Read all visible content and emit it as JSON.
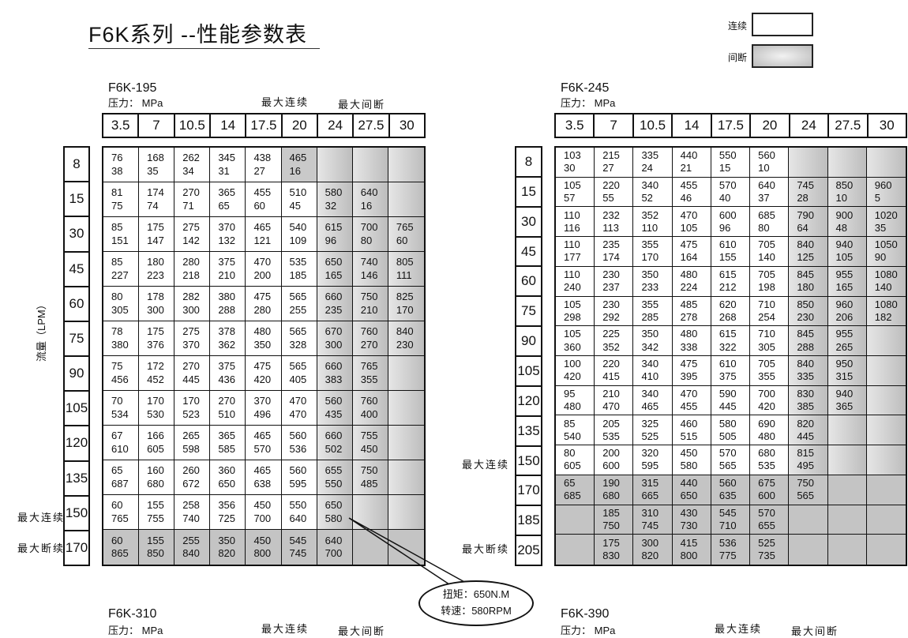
{
  "title": "F6K系列 --性能参数表",
  "legend": {
    "continuous": "连续",
    "intermittent": "间断",
    "continuous_color": "#ffffff",
    "intermittent_color": "#c4c4c4"
  },
  "flow_axis_label": "流量（LPM）",
  "callout": {
    "torque": "扭矩：650N.M",
    "speed": "转速：580RPM"
  },
  "tables": [
    {
      "model": "F6K-195",
      "pressure_label": "压力：  MPa",
      "max_continuous_label": "最大连续",
      "max_intermittent_label": "最大间断",
      "row_side_labels": {
        "150": "最大连续",
        "170": "最大断续"
      },
      "pressures": [
        "3.5",
        "7",
        "10.5",
        "14",
        "17.5",
        "20",
        "24",
        "27.5",
        "30"
      ],
      "flows": [
        "8",
        "15",
        "30",
        "45",
        "60",
        "75",
        "90",
        "105",
        "120",
        "135",
        "150",
        "170"
      ],
      "shade_from": [
        5,
        6,
        6,
        6,
        6,
        6,
        6,
        6,
        6,
        6,
        6,
        0
      ],
      "cells": [
        [
          [
            "76",
            "38"
          ],
          [
            "168",
            "35"
          ],
          [
            "262",
            "34"
          ],
          [
            "345",
            "31"
          ],
          [
            "438",
            "27"
          ],
          [
            "465",
            "16"
          ],
          null,
          null,
          null
        ],
        [
          [
            "81",
            "75"
          ],
          [
            "174",
            "74"
          ],
          [
            "270",
            "71"
          ],
          [
            "365",
            "65"
          ],
          [
            "455",
            "60"
          ],
          [
            "510",
            "45"
          ],
          [
            "580",
            "32"
          ],
          [
            "640",
            "16"
          ],
          null
        ],
        [
          [
            "85",
            "151"
          ],
          [
            "175",
            "147"
          ],
          [
            "275",
            "142"
          ],
          [
            "370",
            "132"
          ],
          [
            "465",
            "121"
          ],
          [
            "540",
            "109"
          ],
          [
            "615",
            "96"
          ],
          [
            "700",
            "80"
          ],
          [
            "765",
            "60"
          ]
        ],
        [
          [
            "85",
            "227"
          ],
          [
            "180",
            "223"
          ],
          [
            "280",
            "218"
          ],
          [
            "375",
            "210"
          ],
          [
            "470",
            "200"
          ],
          [
            "535",
            "185"
          ],
          [
            "650",
            "165"
          ],
          [
            "740",
            "146"
          ],
          [
            "805",
            "111"
          ]
        ],
        [
          [
            "80",
            "305"
          ],
          [
            "178",
            "300"
          ],
          [
            "282",
            "300"
          ],
          [
            "380",
            "288"
          ],
          [
            "475",
            "280"
          ],
          [
            "565",
            "255"
          ],
          [
            "660",
            "235"
          ],
          [
            "750",
            "210"
          ],
          [
            "825",
            "170"
          ]
        ],
        [
          [
            "78",
            "380"
          ],
          [
            "175",
            "376"
          ],
          [
            "275",
            "370"
          ],
          [
            "378",
            "362"
          ],
          [
            "480",
            "350"
          ],
          [
            "565",
            "328"
          ],
          [
            "670",
            "300"
          ],
          [
            "760",
            "270"
          ],
          [
            "840",
            "230"
          ]
        ],
        [
          [
            "75",
            "456"
          ],
          [
            "172",
            "452"
          ],
          [
            "270",
            "445"
          ],
          [
            "375",
            "436"
          ],
          [
            "475",
            "420"
          ],
          [
            "565",
            "405"
          ],
          [
            "660",
            "383"
          ],
          [
            "765",
            "355"
          ],
          null
        ],
        [
          [
            "70",
            "534"
          ],
          [
            "170",
            "530"
          ],
          [
            "170",
            "523"
          ],
          [
            "270",
            "510"
          ],
          [
            "370",
            "496"
          ],
          [
            "470",
            "470"
          ],
          [
            "560",
            "435"
          ],
          [
            "760",
            "400"
          ],
          null
        ],
        [
          [
            "67",
            "610"
          ],
          [
            "166",
            "605"
          ],
          [
            "265",
            "598"
          ],
          [
            "365",
            "585"
          ],
          [
            "465",
            "570"
          ],
          [
            "560",
            "536"
          ],
          [
            "660",
            "502"
          ],
          [
            "755",
            "450"
          ],
          null
        ],
        [
          [
            "65",
            "687"
          ],
          [
            "160",
            "680"
          ],
          [
            "260",
            "672"
          ],
          [
            "360",
            "650"
          ],
          [
            "465",
            "638"
          ],
          [
            "560",
            "595"
          ],
          [
            "655",
            "550"
          ],
          [
            "750",
            "485"
          ],
          null
        ],
        [
          [
            "60",
            "765"
          ],
          [
            "155",
            "755"
          ],
          [
            "258",
            "740"
          ],
          [
            "356",
            "725"
          ],
          [
            "450",
            "700"
          ],
          [
            "550",
            "640"
          ],
          [
            "650",
            "580"
          ],
          null,
          null
        ],
        [
          [
            "60",
            "865"
          ],
          [
            "155",
            "850"
          ],
          [
            "255",
            "840"
          ],
          [
            "350",
            "820"
          ],
          [
            "450",
            "800"
          ],
          [
            "545",
            "745"
          ],
          [
            "640",
            "700"
          ],
          null,
          null
        ]
      ]
    },
    {
      "model": "F6K-245",
      "pressure_label": "压力：  MPa",
      "row_side_labels": {
        "150": "最大连续",
        "205": "最大断续"
      },
      "pressures": [
        "3.5",
        "7",
        "10.5",
        "14",
        "17.5",
        "20",
        "24",
        "27.5",
        "30"
      ],
      "flows": [
        "8",
        "15",
        "30",
        "45",
        "60",
        "75",
        "90",
        "105",
        "120",
        "135",
        "150",
        "170",
        "185",
        "205"
      ],
      "shade_from": [
        6,
        6,
        6,
        6,
        6,
        6,
        6,
        6,
        6,
        6,
        6,
        0,
        0,
        0
      ],
      "cells": [
        [
          [
            "103",
            "30"
          ],
          [
            "215",
            "27"
          ],
          [
            "335",
            "24"
          ],
          [
            "440",
            "21"
          ],
          [
            "550",
            "15"
          ],
          [
            "560",
            "10"
          ],
          null,
          null,
          null
        ],
        [
          [
            "105",
            "57"
          ],
          [
            "220",
            "55"
          ],
          [
            "340",
            "52"
          ],
          [
            "455",
            "46"
          ],
          [
            "570",
            "40"
          ],
          [
            "640",
            "37"
          ],
          [
            "745",
            "28"
          ],
          [
            "850",
            "10"
          ],
          [
            "960",
            "5"
          ]
        ],
        [
          [
            "110",
            "116"
          ],
          [
            "232",
            "113"
          ],
          [
            "352",
            "110"
          ],
          [
            "470",
            "105"
          ],
          [
            "600",
            "96"
          ],
          [
            "685",
            "80"
          ],
          [
            "790",
            "64"
          ],
          [
            "900",
            "48"
          ],
          [
            "1020",
            "35"
          ]
        ],
        [
          [
            "110",
            "177"
          ],
          [
            "235",
            "174"
          ],
          [
            "355",
            "170"
          ],
          [
            "475",
            "164"
          ],
          [
            "610",
            "155"
          ],
          [
            "705",
            "140"
          ],
          [
            "840",
            "125"
          ],
          [
            "940",
            "105"
          ],
          [
            "1050",
            "90"
          ]
        ],
        [
          [
            "110",
            "240"
          ],
          [
            "230",
            "237"
          ],
          [
            "350",
            "233"
          ],
          [
            "480",
            "224"
          ],
          [
            "615",
            "212"
          ],
          [
            "705",
            "198"
          ],
          [
            "845",
            "180"
          ],
          [
            "955",
            "165"
          ],
          [
            "1080",
            "140"
          ]
        ],
        [
          [
            "105",
            "298"
          ],
          [
            "230",
            "292"
          ],
          [
            "355",
            "285"
          ],
          [
            "485",
            "278"
          ],
          [
            "620",
            "268"
          ],
          [
            "710",
            "254"
          ],
          [
            "850",
            "230"
          ],
          [
            "960",
            "206"
          ],
          [
            "1080",
            "182"
          ]
        ],
        [
          [
            "105",
            "360"
          ],
          [
            "225",
            "352"
          ],
          [
            "350",
            "342"
          ],
          [
            "480",
            "338"
          ],
          [
            "615",
            "322"
          ],
          [
            "710",
            "305"
          ],
          [
            "845",
            "288"
          ],
          [
            "955",
            "265"
          ],
          null
        ],
        [
          [
            "100",
            "420"
          ],
          [
            "220",
            "415"
          ],
          [
            "340",
            "410"
          ],
          [
            "475",
            "395"
          ],
          [
            "610",
            "375"
          ],
          [
            "705",
            "355"
          ],
          [
            "840",
            "335"
          ],
          [
            "950",
            "315"
          ],
          null
        ],
        [
          [
            "95",
            "480"
          ],
          [
            "210",
            "470"
          ],
          [
            "340",
            "465"
          ],
          [
            "470",
            "455"
          ],
          [
            "590",
            "445"
          ],
          [
            "700",
            "420"
          ],
          [
            "830",
            "385"
          ],
          [
            "940",
            "365"
          ],
          null
        ],
        [
          [
            "85",
            "540"
          ],
          [
            "205",
            "535"
          ],
          [
            "325",
            "525"
          ],
          [
            "460",
            "515"
          ],
          [
            "580",
            "505"
          ],
          [
            "690",
            "480"
          ],
          [
            "820",
            "445"
          ],
          null,
          null
        ],
        [
          [
            "80",
            "605"
          ],
          [
            "200",
            "600"
          ],
          [
            "320",
            "595"
          ],
          [
            "450",
            "580"
          ],
          [
            "570",
            "565"
          ],
          [
            "680",
            "535"
          ],
          [
            "815",
            "495"
          ],
          null,
          null
        ],
        [
          [
            "65",
            "685"
          ],
          [
            "190",
            "680"
          ],
          [
            "315",
            "665"
          ],
          [
            "440",
            "650"
          ],
          [
            "560",
            "635"
          ],
          [
            "675",
            "600"
          ],
          [
            "750",
            "565"
          ],
          null,
          null
        ],
        [
          null,
          [
            "185",
            "750"
          ],
          [
            "310",
            "745"
          ],
          [
            "430",
            "730"
          ],
          [
            "545",
            "710"
          ],
          [
            "570",
            "655"
          ],
          null,
          null,
          null
        ],
        [
          null,
          [
            "175",
            "830"
          ],
          [
            "300",
            "820"
          ],
          [
            "415",
            "800"
          ],
          [
            "536",
            "775"
          ],
          [
            "525",
            "735"
          ],
          null,
          null,
          null
        ]
      ]
    }
  ],
  "next_tables": [
    {
      "model": "F6K-310",
      "pressure_label": "压力：  MPa",
      "max_continuous_label": "最大连续",
      "max_intermittent_label": "最大间断"
    },
    {
      "model": "F6K-390",
      "pressure_label": "压力：  MPa",
      "max_continuous_label": "最大连续",
      "max_intermittent_label": "最大间断"
    }
  ]
}
